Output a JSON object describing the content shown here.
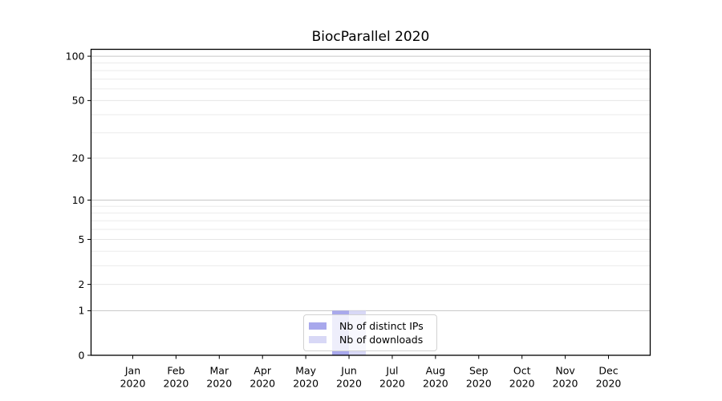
{
  "chart_data": {
    "type": "bar",
    "title": "BiocParallel 2020",
    "categories": [
      {
        "month": "Jan",
        "year": "2020"
      },
      {
        "month": "Feb",
        "year": "2020"
      },
      {
        "month": "Mar",
        "year": "2020"
      },
      {
        "month": "Apr",
        "year": "2020"
      },
      {
        "month": "May",
        "year": "2020"
      },
      {
        "month": "Jun",
        "year": "2020"
      },
      {
        "month": "Jul",
        "year": "2020"
      },
      {
        "month": "Aug",
        "year": "2020"
      },
      {
        "month": "Sep",
        "year": "2020"
      },
      {
        "month": "Oct",
        "year": "2020"
      },
      {
        "month": "Nov",
        "year": "2020"
      },
      {
        "month": "Dec",
        "year": "2020"
      }
    ],
    "series": [
      {
        "name": "Nb of distinct IPs",
        "color": "#a8a8ec",
        "values": [
          0,
          0,
          0,
          0,
          0,
          1,
          0,
          0,
          0,
          0,
          0,
          0
        ]
      },
      {
        "name": "Nb of downloads",
        "color": "#d8d8f6",
        "values": [
          0,
          0,
          0,
          0,
          0,
          1,
          0,
          0,
          0,
          0,
          0,
          0
        ]
      }
    ],
    "y_axis": {
      "scale": "log1p",
      "ticks": [
        0,
        1,
        2,
        5,
        10,
        20,
        50,
        100
      ],
      "tick_labels": [
        "0",
        "1",
        "2",
        "5",
        "10",
        "20",
        "50",
        "100"
      ],
      "minor_ticks": [
        3,
        4,
        6,
        7,
        8,
        9,
        30,
        40,
        60,
        70,
        80,
        90
      ],
      "decade_ticks": [
        1,
        10,
        100
      ],
      "range": [
        0,
        111
      ]
    },
    "grid": "horizontal",
    "legend": {
      "position": "inside-bottom-center"
    },
    "colors": {
      "axis": "#000000",
      "major_grid": "#c6c6c6",
      "minor_grid": "#ebebeb",
      "labeled_grid": "#e6e6e6"
    }
  }
}
